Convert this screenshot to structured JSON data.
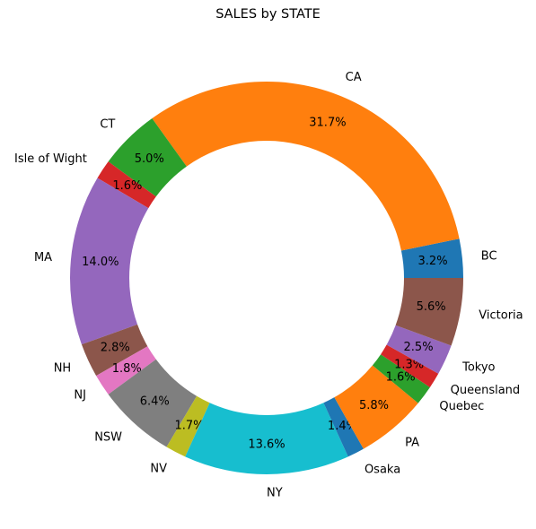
{
  "chart_data": {
    "type": "pie",
    "donut": true,
    "title": "SALES by STATE",
    "start_angle_deg": 0,
    "direction": "counterclockwise",
    "slices": [
      {
        "label": "BC",
        "percent": 3.2,
        "pct_text": "3.2%",
        "color": "#1f77b4"
      },
      {
        "label": "CA",
        "percent": 31.7,
        "pct_text": "31.7%",
        "color": "#ff7f0e"
      },
      {
        "label": "CT",
        "percent": 5.0,
        "pct_text": "5.0%",
        "color": "#2ca02c"
      },
      {
        "label": "Isle of Wight",
        "percent": 1.6,
        "pct_text": "1.6%",
        "color": "#d62728"
      },
      {
        "label": "MA",
        "percent": 14.0,
        "pct_text": "14.0%",
        "color": "#9467bd"
      },
      {
        "label": "NH",
        "percent": 2.8,
        "pct_text": "2.8%",
        "color": "#8c564b"
      },
      {
        "label": "NJ",
        "percent": 1.8,
        "pct_text": "1.8%",
        "color": "#e377c2"
      },
      {
        "label": "NSW",
        "percent": 6.4,
        "pct_text": "6.4%",
        "color": "#7f7f7f"
      },
      {
        "label": "NV",
        "percent": 1.7,
        "pct_text": "1.7%",
        "color": "#bcbd22"
      },
      {
        "label": "NY",
        "percent": 13.6,
        "pct_text": "13.6%",
        "color": "#17becf"
      },
      {
        "label": "Osaka",
        "percent": 1.4,
        "pct_text": "1.4%",
        "color": "#1f77b4"
      },
      {
        "label": "PA",
        "percent": 5.8,
        "pct_text": "5.8%",
        "color": "#ff7f0e"
      },
      {
        "label": "Quebec",
        "percent": 1.6,
        "pct_text": "1.6%",
        "color": "#2ca02c"
      },
      {
        "label": "Queensland",
        "percent": 1.3,
        "pct_text": "1.3%",
        "color": "#d62728"
      },
      {
        "label": "Tokyo",
        "percent": 2.5,
        "pct_text": "2.5%",
        "color": "#9467bd"
      },
      {
        "label": "Victoria",
        "percent": 5.6,
        "pct_text": "5.6%",
        "color": "#8c564b"
      }
    ]
  }
}
